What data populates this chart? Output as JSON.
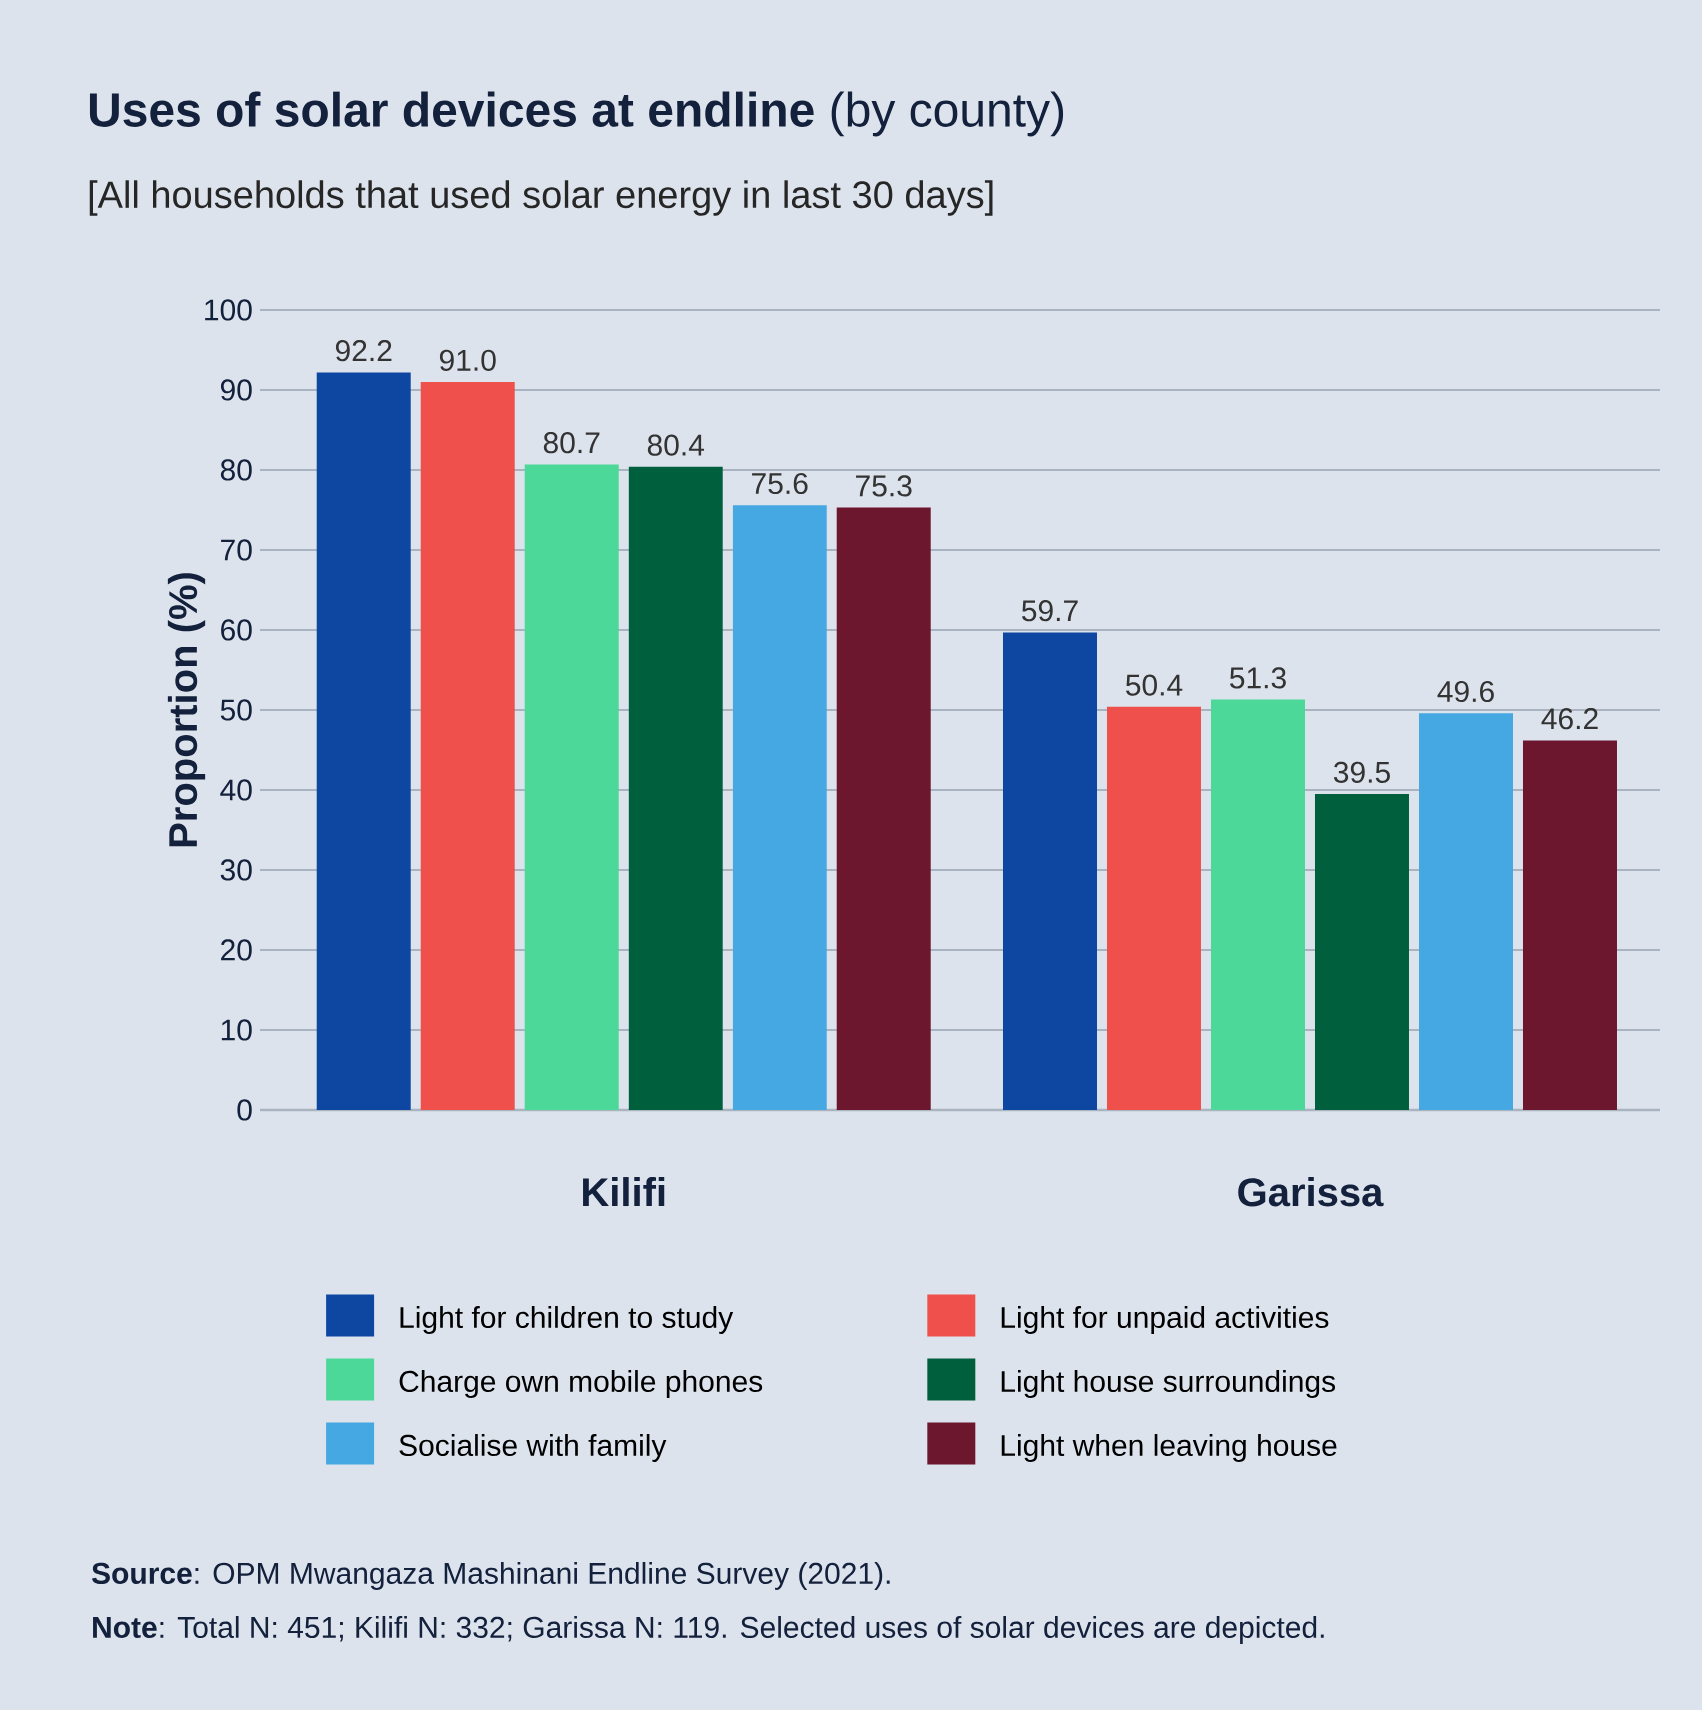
{
  "chart_data": {
    "type": "bar",
    "title": "**Uses of solar devices at endline** (by county)",
    "subtitle": "[All households that used solar energy in last 30 days]",
    "ylabel": "Proportion (%)",
    "categories": [
      "Kilifi",
      "Garissa"
    ],
    "series": [
      {
        "name": "Light for children to study",
        "color": "#0d47a1",
        "values": [
          92.2,
          59.7
        ],
        "value_labels": [
          "92.2",
          "59.7"
        ]
      },
      {
        "name": "Light for unpaid activities",
        "color": "#ef504b",
        "values": [
          91.0,
          50.4
        ],
        "value_labels": [
          "91.0",
          "50.4"
        ]
      },
      {
        "name": "Charge own mobile phones",
        "color": "#4cd898",
        "values": [
          80.7,
          51.3
        ],
        "value_labels": [
          "80.7",
          "51.3"
        ]
      },
      {
        "name": "Light house surroundings",
        "color": "#00603d",
        "values": [
          80.4,
          39.5
        ],
        "value_labels": [
          "80.4",
          "39.5"
        ]
      },
      {
        "name": "Socialise with family",
        "color": "#45a8e2",
        "values": [
          75.6,
          49.6
        ],
        "value_labels": [
          "75.6",
          "49.6"
        ]
      },
      {
        "name": "Light when leaving house",
        "color": "#6d172e",
        "values": [
          75.3,
          46.2
        ],
        "value_labels": [
          "75.3",
          "46.2"
        ]
      }
    ],
    "ylim": [
      0,
      100
    ],
    "yticks": [
      0,
      10,
      20,
      30,
      40,
      50,
      60,
      70,
      80,
      90,
      100
    ],
    "grid": "y",
    "legend": "bottom",
    "annotations": [
      "**Source**: OPM Mwangaza Mashinani Endline Survey (2021).",
      "**Note**: Total N: 451; Kilifi N: 332; Garissa N: 119. Selected uses of solar devices are depicted."
    ]
  }
}
